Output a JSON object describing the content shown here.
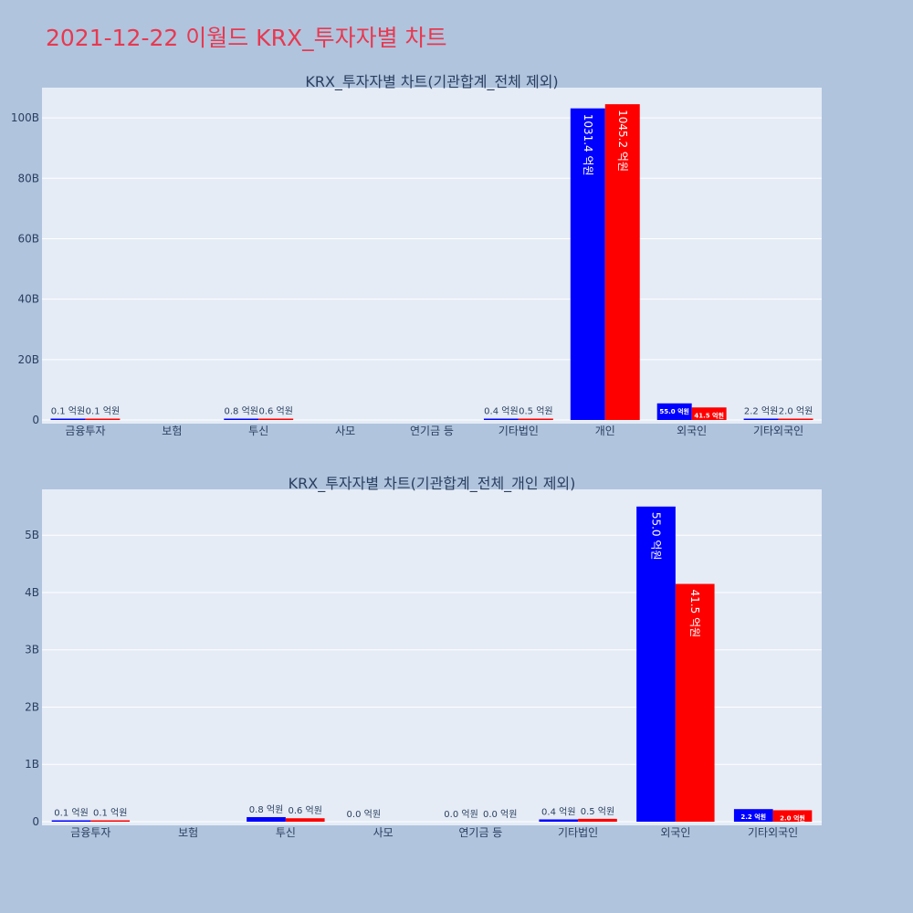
{
  "title": "2021-12-22 이월드 KRX_투자자별 차트",
  "colors": {
    "buy": "#0000ff",
    "sell": "#ff0000",
    "background": "#b0c4de",
    "plot": "#e5ecf6",
    "title": "#e8384f"
  },
  "chart_data": [
    {
      "type": "bar",
      "title": "KRX_투자자별 차트(기관합계_전체 제외)",
      "categories": [
        "금융투자",
        "보험",
        "투신",
        "사모",
        "연기금 등",
        "기타법인",
        "개인",
        "외국인",
        "기타외국인"
      ],
      "series": [
        {
          "values": [
            0.01,
            0,
            0.08,
            0,
            0,
            0.04,
            103.14,
            5.5,
            0.22
          ],
          "labels": [
            "0.1 억원",
            "",
            "0.8 억원",
            "",
            "",
            "0.4 억원",
            "1031.4 억원",
            "55.0 억원",
            "2.2 억원"
          ]
        },
        {
          "values": [
            0.01,
            0,
            0.06,
            0,
            0,
            0.05,
            104.52,
            4.15,
            0.2
          ],
          "labels": [
            "0.1 억원",
            "",
            "0.6 억원",
            "",
            "",
            "0.5 억원",
            "1045.2 억원",
            "41.5 억원",
            "2.0 억원"
          ]
        }
      ],
      "value_unit": "B",
      "ylim": [
        0,
        110
      ],
      "yticks": [
        0,
        20,
        40,
        60,
        80,
        100
      ],
      "ytick_labels": [
        "0",
        "20B",
        "40B",
        "60B",
        "80B",
        "100B"
      ],
      "grid": true
    },
    {
      "type": "bar",
      "title": "KRX_투자자별 차트(기관합계_전체_개인 제외)",
      "categories": [
        "금융투자",
        "보험",
        "투신",
        "사모",
        "연기금 등",
        "기타법인",
        "외국인",
        "기타외국인"
      ],
      "series": [
        {
          "values": [
            0.01,
            0,
            0.08,
            0.0,
            0.0,
            0.04,
            5.5,
            0.22
          ],
          "labels": [
            "0.1 억원",
            "",
            "0.8 억원",
            "0.0 억원",
            "0.0 억원",
            "0.4 억원",
            "55.0 억원",
            "2.2 억원"
          ]
        },
        {
          "values": [
            0.01,
            0,
            0.06,
            0,
            0.0,
            0.05,
            4.15,
            0.2
          ],
          "labels": [
            "0.1 억원",
            "",
            "0.6 억원",
            "",
            "0.0 억원",
            "0.5 억원",
            "41.5 억원",
            "2.0 억원"
          ]
        }
      ],
      "value_unit": "B",
      "ylim": [
        0,
        5.8
      ],
      "yticks": [
        0,
        1,
        2,
        3,
        4,
        5
      ],
      "ytick_labels": [
        "0",
        "1B",
        "2B",
        "3B",
        "4B",
        "5B"
      ],
      "grid": true
    }
  ]
}
